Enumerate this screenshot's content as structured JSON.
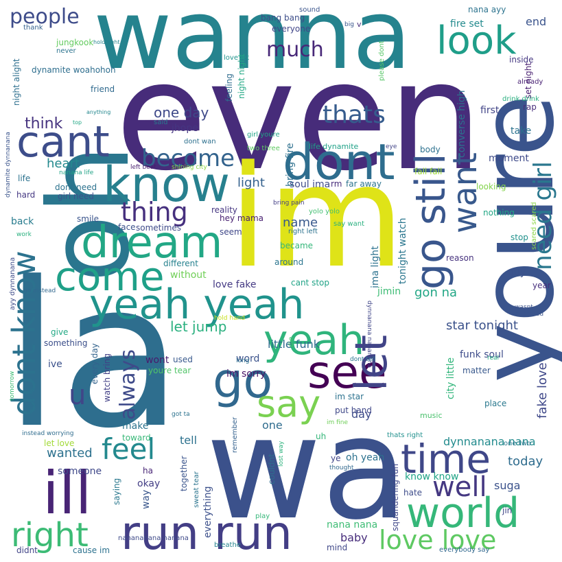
{
  "words": [
    {
      "text": "la",
      "color": "#2e6e8e"
    },
    {
      "text": "wa",
      "color": "#3b518b"
    },
    {
      "text": "even",
      "color": "#472c7a"
    },
    {
      "text": "im",
      "color": "#dfe318"
    },
    {
      "text": "wanna",
      "color": "#25838e"
    },
    {
      "text": "oh",
      "color": "#2a768e"
    },
    {
      "text": "youre",
      "color": "#3a548c"
    },
    {
      "text": "dont",
      "color": "#2e6d8e"
    },
    {
      "text": "know",
      "color": "#27808e"
    },
    {
      "text": "cant",
      "color": "#3d4d8a"
    },
    {
      "text": "dream",
      "color": "#22a785"
    },
    {
      "text": "yeah yeah",
      "color": "#20938c"
    },
    {
      "text": "yeah",
      "color": "#2fb47c"
    },
    {
      "text": "see",
      "color": "#440154"
    },
    {
      "text": "go",
      "color": "#31688e"
    },
    {
      "text": "say",
      "color": "#7ad151"
    },
    {
      "text": "come",
      "color": "#1fa088"
    },
    {
      "text": "ill",
      "color": "#482475"
    },
    {
      "text": "run run",
      "color": "#433e85"
    },
    {
      "text": "world",
      "color": "#35b779"
    },
    {
      "text": "time",
      "color": "#3f4788"
    },
    {
      "text": "right",
      "color": "#3cbb75"
    },
    {
      "text": "let",
      "color": "#414487"
    },
    {
      "text": "go still",
      "color": "#39568c"
    },
    {
      "text": "want",
      "color": "#38598c"
    },
    {
      "text": "look",
      "color": "#1f9e89"
    },
    {
      "text": "become",
      "color": "#33638d"
    },
    {
      "text": "thing",
      "color": "#46307e"
    },
    {
      "text": "dont know",
      "color": "#2c728e"
    },
    {
      "text": "feel",
      "color": "#23898e"
    },
    {
      "text": "well",
      "color": "#453882"
    },
    {
      "text": "love love",
      "color": "#5ec962"
    },
    {
      "text": "need girl",
      "color": "#2a778e"
    },
    {
      "text": "always",
      "color": "#3e4a89"
    },
    {
      "text": "u",
      "color": "#404688"
    },
    {
      "text": "thats",
      "color": "#365c8d"
    },
    {
      "text": "much",
      "color": "#482878"
    },
    {
      "text": "people",
      "color": "#3e4c8a"
    },
    {
      "text": "one day",
      "color": "#3e4989"
    },
    {
      "text": "think",
      "color": "#46337f"
    },
    {
      "text": "heart",
      "color": "#23898e"
    },
    {
      "text": "light",
      "color": "#34618d"
    },
    {
      "text": "name",
      "color": "#38588c"
    },
    {
      "text": "let jump",
      "color": "#2ab07f"
    },
    {
      "text": "little funk",
      "color": "#2f6b8e"
    },
    {
      "text": "star tonight",
      "color": "#3b528b"
    },
    {
      "text": "fake love",
      "color": "#3f4889"
    },
    {
      "text": "gon na",
      "color": "#21a685"
    },
    {
      "text": "dynnanana nana",
      "color": "#228b8d"
    },
    {
      "text": "today",
      "color": "#2f6c8e"
    },
    {
      "text": "know know",
      "color": "#20a486"
    },
    {
      "text": "suga",
      "color": "#3b528b"
    },
    {
      "text": "wanted",
      "color": "#2d718e"
    },
    {
      "text": "someone",
      "color": "#3f4889"
    },
    {
      "text": "oh yeah",
      "color": "#2c718e"
    },
    {
      "text": "nana nana",
      "color": "#3dbc74"
    },
    {
      "text": "baby",
      "color": "#472d7b"
    },
    {
      "text": "one",
      "color": "#2f6c8e"
    },
    {
      "text": "day",
      "color": "#3e4c8a"
    },
    {
      "text": "word",
      "color": "#3b528b"
    },
    {
      "text": "im sorry",
      "color": "#481467"
    },
    {
      "text": "hey mama",
      "color": "#482071"
    },
    {
      "text": "reality",
      "color": "#453581"
    },
    {
      "text": "seem",
      "color": "#3f4788"
    },
    {
      "text": "love fake",
      "color": "#443983"
    },
    {
      "text": "without",
      "color": "#70cf57"
    },
    {
      "text": "different",
      "color": "#26818e"
    },
    {
      "text": "sometimes",
      "color": "#3e4a89"
    },
    {
      "text": "smile",
      "color": "#3a548c"
    },
    {
      "text": "back",
      "color": "#287c8e"
    },
    {
      "text": "face",
      "color": "#3b518b"
    },
    {
      "text": "make",
      "color": "#2c738e"
    },
    {
      "text": "tell",
      "color": "#2c718e"
    },
    {
      "text": "okay",
      "color": "#433e85"
    },
    {
      "text": "ha",
      "color": "#482576"
    },
    {
      "text": "wont",
      "color": "#481a6c"
    },
    {
      "text": "used",
      "color": "#38588c"
    },
    {
      "text": "youre tear",
      "color": "#52c569"
    },
    {
      "text": "watch bring",
      "color": "#424086"
    },
    {
      "text": "every day",
      "color": "#33638d"
    },
    {
      "text": "first",
      "color": "#414487"
    },
    {
      "text": "take",
      "color": "#2c728e"
    },
    {
      "text": "rap",
      "color": "#472d7b"
    },
    {
      "text": "moment",
      "color": "#3e4a89"
    },
    {
      "text": "converse high",
      "color": "#2c728e"
    },
    {
      "text": "end",
      "color": "#3a538b"
    },
    {
      "text": "fire set",
      "color": "#238a8d"
    },
    {
      "text": "nana ayy",
      "color": "#2c738e"
    },
    {
      "text": "set night",
      "color": "#481f70"
    },
    {
      "text": "inside",
      "color": "#453882"
    },
    {
      "text": "already",
      "color": "#482173"
    },
    {
      "text": "drink drink",
      "color": "#29af7f"
    },
    {
      "text": "bang bang",
      "color": "#3d4e8a"
    },
    {
      "text": "everyone",
      "color": "#404588"
    },
    {
      "text": "sound",
      "color": "#3a548c"
    },
    {
      "text": "big",
      "color": "#39568c"
    },
    {
      "text": "v",
      "color": "#472c7a"
    },
    {
      "text": "thank",
      "color": "#34618d"
    },
    {
      "text": "jungkook",
      "color": "#63cb5f"
    },
    {
      "text": "hold tight",
      "color": "#25848e"
    },
    {
      "text": "never",
      "color": "#2c738e"
    },
    {
      "text": "dynamite woahohoh",
      "color": "#2e6e8e"
    },
    {
      "text": "night alight",
      "color": "#2e6f8e"
    },
    {
      "text": "night night",
      "color": "#22a884"
    },
    {
      "text": "love let",
      "color": "#1f948c"
    },
    {
      "text": "feeling",
      "color": "#2f6c8e"
    },
    {
      "text": "please dont",
      "color": "#56c667"
    },
    {
      "text": "friend",
      "color": "#306a8e"
    },
    {
      "text": "anything",
      "color": "#24878e"
    },
    {
      "text": "top",
      "color": "#22a785"
    },
    {
      "text": "said",
      "color": "#2a788e"
    },
    {
      "text": "jhope",
      "color": "#453581"
    },
    {
      "text": "dont wan",
      "color": "#2d708e"
    },
    {
      "text": "girl youre",
      "color": "#20a386"
    },
    {
      "text": "two three",
      "color": "#5ec962"
    },
    {
      "text": "life dynamite",
      "color": "#1fa187"
    },
    {
      "text": "eye",
      "color": "#414487"
    },
    {
      "text": "body",
      "color": "#2c718e"
    },
    {
      "text": "fall fall",
      "color": "#9fda3a"
    },
    {
      "text": "looking",
      "color": "#83d34b"
    },
    {
      "text": "nothing",
      "color": "#21a685"
    },
    {
      "text": "stop",
      "color": "#21918c"
    },
    {
      "text": "reason",
      "color": "#46327e"
    },
    {
      "text": "year",
      "color": "#472f7d"
    },
    {
      "text": "wasnt",
      "color": "#3b528b"
    },
    {
      "text": "im scared",
      "color": "#3a548c"
    },
    {
      "text": "scared scared",
      "color": "#8bd646"
    },
    {
      "text": "bring fire",
      "color": "#2d708e"
    },
    {
      "text": "bring pain",
      "color": "#433e85"
    },
    {
      "text": "right left",
      "color": "#2c728e"
    },
    {
      "text": "soul ima",
      "color": "#3e4a89"
    },
    {
      "text": "rm",
      "color": "#472d7b"
    },
    {
      "text": "far away",
      "color": "#2c738e"
    },
    {
      "text": "yolo yolo",
      "color": "#42be71"
    },
    {
      "text": "say want",
      "color": "#2ab07f"
    },
    {
      "text": "ima light",
      "color": "#2c728e"
    },
    {
      "text": "tonight watch",
      "color": "#2a768e"
    },
    {
      "text": "became",
      "color": "#34b679"
    },
    {
      "text": "around",
      "color": "#2b758e"
    },
    {
      "text": "cant stop",
      "color": "#20a386"
    },
    {
      "text": "jimin",
      "color": "#3dbc74"
    },
    {
      "text": "dynnanana nananana",
      "color": "#404688"
    },
    {
      "text": "funk soul",
      "color": "#3e4c8a"
    },
    {
      "text": "city little",
      "color": "#30b57a"
    },
    {
      "text": "guy",
      "color": "#3b528b"
    },
    {
      "text": "matter",
      "color": "#38588c"
    },
    {
      "text": "place",
      "color": "#2a788e"
    },
    {
      "text": "music",
      "color": "#4ac16d"
    },
    {
      "text": "one two",
      "color": "#2a778e"
    },
    {
      "text": "hate",
      "color": "#3e4c8a"
    },
    {
      "text": "jin",
      "color": "#404688"
    },
    {
      "text": "squandering fun",
      "color": "#3f4889"
    },
    {
      "text": "put hand",
      "color": "#3f4788"
    },
    {
      "text": "im star",
      "color": "#2c728e"
    },
    {
      "text": "uh",
      "color": "#34b679"
    },
    {
      "text": "im fine",
      "color": "#6ece58"
    },
    {
      "text": "thats right",
      "color": "#21908d"
    },
    {
      "text": "dont tell",
      "color": "#2b748e"
    },
    {
      "text": "real",
      "color": "#25ac82"
    },
    {
      "text": "got ta",
      "color": "#2c728e"
    },
    {
      "text": "die",
      "color": "#48c16e"
    },
    {
      "text": "long",
      "color": "#2c718e"
    },
    {
      "text": "remember",
      "color": "#34618d"
    },
    {
      "text": "couldnt",
      "color": "#2e6e8e"
    },
    {
      "text": "ye",
      "color": "#404588"
    },
    {
      "text": "thought",
      "color": "#31688e"
    },
    {
      "text": "lost way",
      "color": "#2db27d"
    },
    {
      "text": "everybody say",
      "color": "#31688e"
    },
    {
      "text": "mind",
      "color": "#3f4788"
    },
    {
      "text": "play",
      "color": "#35b779"
    },
    {
      "text": "breathe",
      "color": "#25848e"
    },
    {
      "text": "together",
      "color": "#3a548c"
    },
    {
      "text": "sweat tear",
      "color": "#2b748e"
    },
    {
      "text": "saying",
      "color": "#2a788e"
    },
    {
      "text": "way",
      "color": "#39568c"
    },
    {
      "text": "everything",
      "color": "#3c508b"
    },
    {
      "text": "nanananana nanana",
      "color": "#3e4a89"
    },
    {
      "text": "cause im",
      "color": "#2c718e"
    },
    {
      "text": "didnt",
      "color": "#414487"
    },
    {
      "text": "toward",
      "color": "#37b878"
    },
    {
      "text": "let love",
      "color": "#a2da37"
    },
    {
      "text": "instead worrying",
      "color": "#2f6c8e"
    },
    {
      "text": "hyung",
      "color": "#2d708e"
    },
    {
      "text": "tomorrow",
      "color": "#3dbc74"
    },
    {
      "text": "ive",
      "color": "#3b518b"
    },
    {
      "text": "something",
      "color": "#3c4f8a"
    },
    {
      "text": "give",
      "color": "#22a884"
    },
    {
      "text": "go instead",
      "color": "#31688e"
    },
    {
      "text": "ayy dynnanana",
      "color": "#3e4c8a"
    },
    {
      "text": "work",
      "color": "#2ab07f"
    },
    {
      "text": "hard",
      "color": "#453882"
    },
    {
      "text": "life",
      "color": "#2c728e"
    },
    {
      "text": "dynamite dynnanana",
      "color": "#3a548c"
    },
    {
      "text": "nanana life",
      "color": "#20a386"
    },
    {
      "text": "dont need",
      "color": "#2c728e"
    },
    {
      "text": "girl need",
      "color": "#3b528b"
    },
    {
      "text": "left beat",
      "color": "#481d6f"
    },
    {
      "text": "shining city",
      "color": "#8bd646"
    },
    {
      "text": "hold hand",
      "color": "#c8e020"
    }
  ]
}
